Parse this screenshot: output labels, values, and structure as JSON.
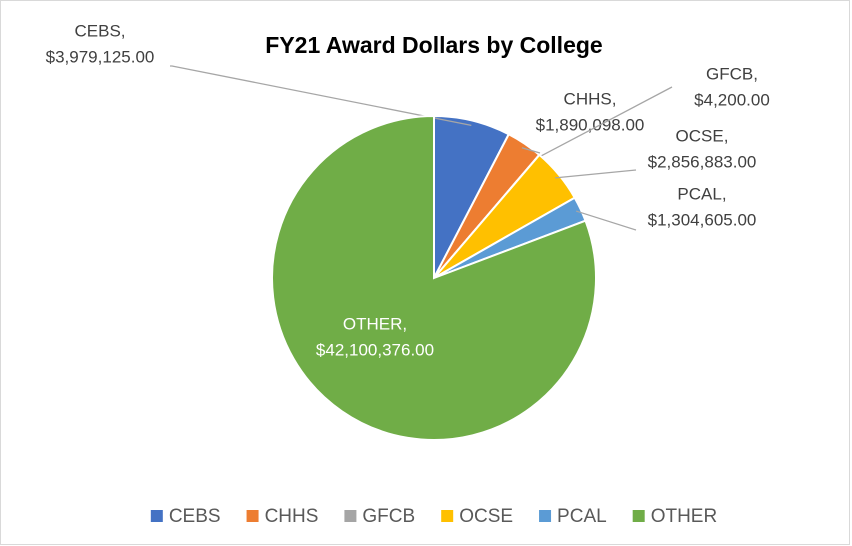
{
  "chart_data": {
    "type": "pie",
    "title": "FY21 Award Dollars by College",
    "categories": [
      "CEBS",
      "CHHS",
      "GFCB",
      "OCSE",
      "PCAL",
      "OTHER"
    ],
    "values": [
      3979125,
      1890098,
      4200,
      2856883,
      1304605,
      42100376
    ],
    "value_labels": [
      "$3,979,125.00",
      "$1,890,098.00",
      "$4,200.00",
      "$2,856,883.00",
      "$1,304,605.00",
      "$42,100,376.00"
    ],
    "data_label_names": [
      "CEBS,",
      "CHHS,",
      "GFCB,",
      "OCSE,",
      "PCAL,",
      "OTHER,"
    ],
    "colors": [
      "#4472c4",
      "#ed7d31",
      "#a5a5a5",
      "#ffc000",
      "#5b9bd5",
      "#70ad47"
    ],
    "legend": "bottom"
  }
}
